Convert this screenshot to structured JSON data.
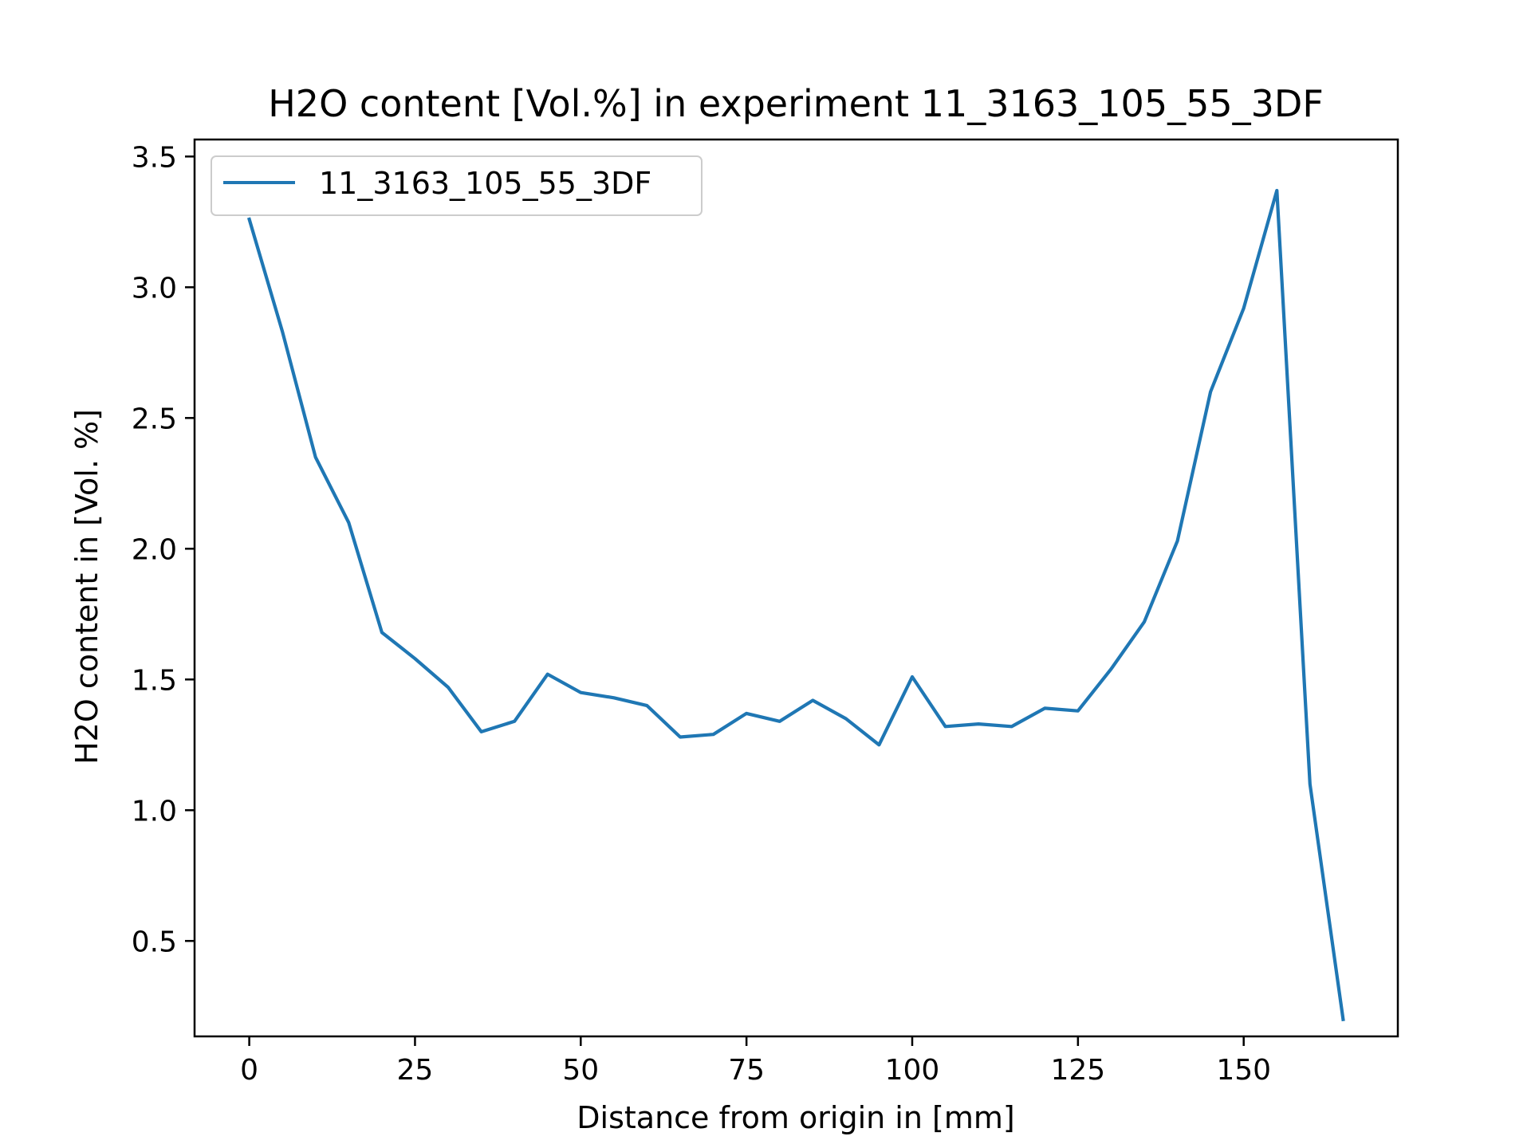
{
  "colors": {
    "series_line": "#1f77b4",
    "axes": "#000000",
    "legend_border": "#cccccc",
    "background": "#ffffff"
  },
  "chart_data": {
    "type": "line",
    "title": "H2O content [Vol.%] in experiment 11_3163_105_55_3DF",
    "xlabel": "Distance from origin in [mm]",
    "ylabel": "H2O content in [Vol. %]",
    "xlim": [
      -8.25,
      173.25
    ],
    "ylim": [
      0.135,
      3.565
    ],
    "xticks": [
      0,
      25,
      50,
      75,
      100,
      125,
      150
    ],
    "xtick_labels": [
      "0",
      "25",
      "50",
      "75",
      "100",
      "125",
      "150"
    ],
    "yticks": [
      0.5,
      1.0,
      1.5,
      2.0,
      2.5,
      3.0,
      3.5
    ],
    "ytick_labels": [
      "0.5",
      "1.0",
      "1.5",
      "2.0",
      "2.5",
      "3.0",
      "3.5"
    ],
    "grid": false,
    "legend_position": "upper-left",
    "series": [
      {
        "name": "11_3163_105_55_3DF",
        "x": [
          0,
          5,
          10,
          15,
          20,
          25,
          30,
          35,
          40,
          45,
          50,
          55,
          60,
          65,
          70,
          75,
          80,
          85,
          90,
          95,
          100,
          105,
          110,
          115,
          120,
          125,
          130,
          135,
          140,
          145,
          150,
          155,
          160,
          165
        ],
        "y": [
          3.26,
          2.83,
          2.35,
          2.1,
          1.68,
          1.58,
          1.47,
          1.3,
          1.34,
          1.52,
          1.45,
          1.43,
          1.4,
          1.28,
          1.29,
          1.37,
          1.34,
          1.42,
          1.35,
          1.25,
          1.51,
          1.32,
          1.33,
          1.32,
          1.39,
          1.38,
          1.54,
          1.72,
          2.03,
          2.6,
          2.92,
          3.37,
          1.1,
          0.2
        ]
      }
    ]
  }
}
